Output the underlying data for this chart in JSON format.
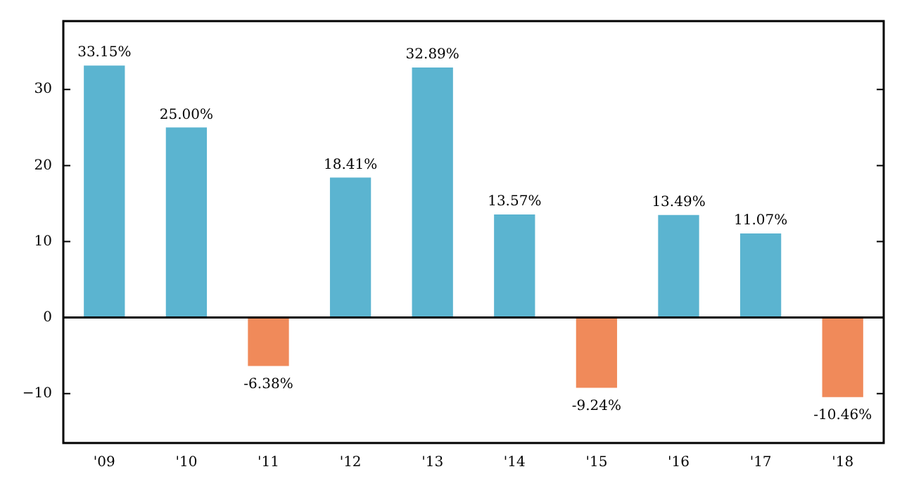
{
  "chart_data": {
    "type": "bar",
    "categories": [
      "'09",
      "'10",
      "'11",
      "'12",
      "'13",
      "'14",
      "'15",
      "'16",
      "'17",
      "'18"
    ],
    "values": [
      33.15,
      25.0,
      -6.38,
      18.41,
      32.89,
      13.57,
      -9.24,
      13.49,
      11.07,
      -10.46
    ],
    "colors": [
      "#5bb4d0",
      "#5bb4d0",
      "#f08a5a",
      "#5bb4d0",
      "#5bb4d0",
      "#5bb4d0",
      "#f08a5a",
      "#5bb4d0",
      "#5bb4d0",
      "#f08a5a"
    ],
    "value_labels": [
      "33.15%",
      "25.00%",
      "-6.38%",
      "18.41%",
      "32.89%",
      "13.57%",
      "-9.24%",
      "13.49%",
      "11.07%",
      "-10.46%"
    ],
    "ylim": [
      -16.5,
      39
    ],
    "yticks": [
      -10,
      0,
      10,
      20,
      30
    ],
    "ref_lines": [
      {
        "axis": "y",
        "value": 0,
        "color": "#000000"
      }
    ],
    "grid": false,
    "legend": false
  }
}
